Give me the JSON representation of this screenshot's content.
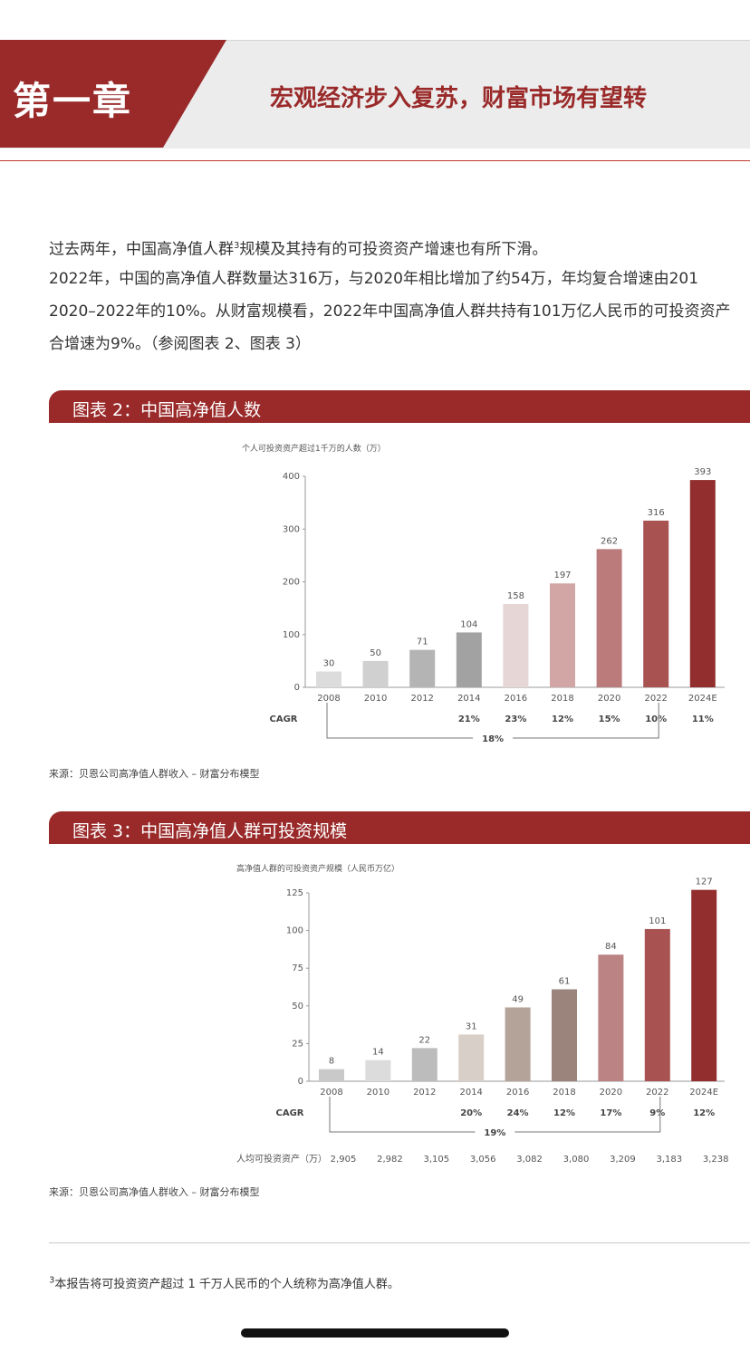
{
  "header": {
    "chapter": "第一章",
    "title": "宏观经济步入复苏，财富市场有望转"
  },
  "body": {
    "line1_pre": "过去两年，中国高净值人群",
    "line1_sup": "3",
    "line1_post": "规模及其持有的可投资资产增速也有所下滑。",
    "line2": "2022年，中国的高净值人群数量达316万，与2020年相比增加了约54万，年均复合增速由201",
    "line3": "2020–2022年的10%。从财富规模看，2022年中国高净值人群共持有101万亿人民币的可投资资产",
    "line4": "合增速为9%。（参阅图表 2、图表 3）"
  },
  "figure2": {
    "title": "图表 2：中国高净值人数",
    "source": "来源：贝恩公司高净值人群收入 – 财富分布模型"
  },
  "figure3": {
    "title": "图表 3：中国高净值人群可投资规模",
    "source": "来源：贝恩公司高净值人群收入 – 财富分布模型"
  },
  "footnote": {
    "sup": "3",
    "text": "本报告将可投资资产超过 1 千万人民币的个人统称为高净值人群。"
  },
  "chart_data": [
    {
      "type": "bar",
      "axis_title": "个人可投资资产超过1千万的人数（万）",
      "categories": [
        "2008",
        "2010",
        "2012",
        "2014",
        "2016",
        "2018",
        "2020",
        "2022",
        "2024E"
      ],
      "values": [
        30,
        50,
        71,
        104,
        158,
        197,
        262,
        316,
        393
      ],
      "ylim": [
        0,
        400
      ],
      "yticks": [
        0,
        100,
        200,
        300,
        400
      ],
      "colors": [
        "#dcdcdc",
        "#d0d0d0",
        "#b4b4b4",
        "#a2a2a2",
        "#e6d6d6",
        "#d3a6a6",
        "#bb7b7b",
        "#a85252",
        "#922e2e"
      ],
      "cagr_label": "CAGR",
      "cagr": [
        "",
        "",
        "",
        "21%",
        "23%",
        "12%",
        "15%",
        "10%",
        "11%"
      ],
      "overall_cagr": "18%"
    },
    {
      "type": "bar",
      "axis_title": "高净值人群的可投资资产规模（人民币万亿）",
      "categories": [
        "2008",
        "2010",
        "2012",
        "2014",
        "2016",
        "2018",
        "2020",
        "2022",
        "2024E"
      ],
      "values": [
        8,
        14,
        22,
        31,
        49,
        61,
        84,
        101,
        127
      ],
      "ylim": [
        0,
        125
      ],
      "yticks": [
        0,
        25,
        50,
        75,
        100,
        125
      ],
      "colors": [
        "#c9c9c9",
        "#dcdcdc",
        "#bcbcbc",
        "#d9cfc9",
        "#b4a398",
        "#9a847b",
        "#bb8383",
        "#a85252",
        "#922e2e"
      ],
      "cagr_label": "CAGR",
      "cagr": [
        "",
        "",
        "",
        "20%",
        "24%",
        "12%",
        "17%",
        "9%",
        "12%"
      ],
      "overall_cagr": "19%",
      "per_capita_label": "人均可投资资产（万）",
      "per_capita": [
        "2,905",
        "2,982",
        "3,105",
        "3,056",
        "3,082",
        "3,080",
        "3,209",
        "3,183",
        "3,238"
      ]
    }
  ]
}
